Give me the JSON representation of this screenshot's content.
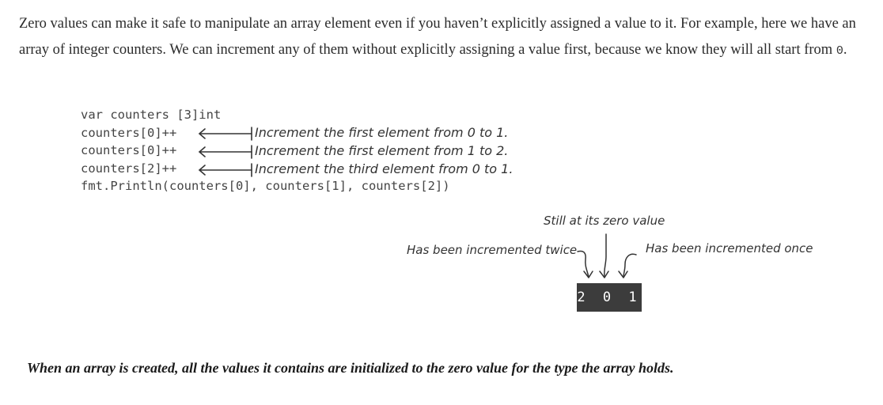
{
  "intro": {
    "text": "Zero values can make it safe to manipulate an array element even if you haven’t explicitly assigned a value to it. For example, here we have an array of integer counters. We can increment any of them without explicitly assigning a value first, because we know they will all start from ",
    "code_value": "0",
    "end": "."
  },
  "code_lines": [
    "var counters [3]int",
    "counters[0]++",
    "counters[0]++",
    "counters[2]++",
    "fmt.Println(counters[0], counters[1], counters[2])"
  ],
  "line_annotations": [
    "Increment the first element from 0 to 1.",
    "Increment the first element from 1 to 2.",
    "Increment the third element from 0 to 1."
  ],
  "output": {
    "value": "2 0 1",
    "note_middle": "Still at its zero value",
    "note_left": "Has been incremented twice",
    "note_right": "Has been incremented once"
  },
  "caption": "When an array is created, all the values it contains are initialized to the zero value for the type the array holds."
}
